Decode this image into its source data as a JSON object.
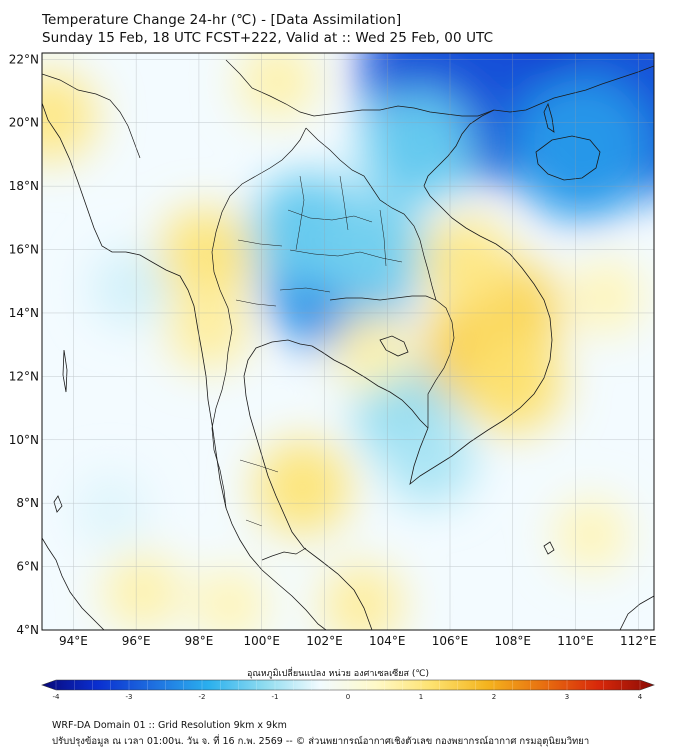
{
  "title": {
    "line1": "Temperature Change 24-hr (℃) - [Data Assimilation]",
    "line2": "Sunday 15 Feb, 18 UTC FCST+222, Valid at :: Wed 25 Feb, 00 UTC"
  },
  "map": {
    "lat_labels": [
      "22°N",
      "20°N",
      "18°N",
      "16°N",
      "14°N",
      "12°N",
      "10°N",
      "8°N",
      "6°N",
      "4°N"
    ],
    "lon_labels": [
      "94°E",
      "96°E",
      "98°E",
      "100°E",
      "102°E",
      "104°E",
      "106°E",
      "108°E",
      "110°E",
      "112°E"
    ],
    "extent": {
      "lon_min": 93.0,
      "lon_max": 112.5,
      "lat_min": 4.0,
      "lat_max": 22.2
    },
    "gridlines": true,
    "anomalies": [
      {
        "lon": 110.0,
        "lat": 21.2,
        "value": -3.6
      },
      {
        "lon": 107.5,
        "lat": 21.3,
        "value": -3.3
      },
      {
        "lon": 106.0,
        "lat": 21.6,
        "value": -2.9
      },
      {
        "lon": 112.0,
        "lat": 20.5,
        "value": -2.9
      },
      {
        "lon": 110.2,
        "lat": 19.2,
        "value": -2.1
      },
      {
        "lon": 105.0,
        "lat": 19.3,
        "value": -1.4
      },
      {
        "lon": 102.4,
        "lat": 15.1,
        "value": -2.2
      },
      {
        "lon": 101.5,
        "lat": 16.6,
        "value": -1.4
      },
      {
        "lon": 103.5,
        "lat": 16.0,
        "value": -1.3
      },
      {
        "lon": 104.6,
        "lat": 10.8,
        "value": -1.1
      },
      {
        "lon": 105.3,
        "lat": 9.4,
        "value": -0.9
      },
      {
        "lon": 107.0,
        "lat": 12.8,
        "value": 1.4
      },
      {
        "lon": 107.8,
        "lat": 14.0,
        "value": 1.3
      },
      {
        "lon": 106.5,
        "lat": 15.6,
        "value": 0.9
      },
      {
        "lon": 108.0,
        "lat": 11.8,
        "value": 1.1
      },
      {
        "lon": 98.2,
        "lat": 15.8,
        "value": 1.0
      },
      {
        "lon": 98.3,
        "lat": 13.5,
        "value": 0.7
      },
      {
        "lon": 93.3,
        "lat": 20.2,
        "value": 0.9
      },
      {
        "lon": 101.3,
        "lat": 8.5,
        "value": 1.0
      },
      {
        "lon": 103.5,
        "lat": 12.8,
        "value": 0.6
      },
      {
        "lon": 100.5,
        "lat": 21.3,
        "value": 0.6
      },
      {
        "lon": 103.2,
        "lat": 4.8,
        "value": 0.7
      },
      {
        "lon": 96.2,
        "lat": 5.2,
        "value": 0.6
      },
      {
        "lon": 95.8,
        "lat": 14.8,
        "value": -0.6
      },
      {
        "lon": 95.2,
        "lat": 7.8,
        "value": -0.5
      },
      {
        "lon": 111.0,
        "lat": 14.5,
        "value": 0.5
      },
      {
        "lon": 110.5,
        "lat": 7.0,
        "value": 0.5
      },
      {
        "lon": 99.0,
        "lat": 4.8,
        "value": 0.5
      }
    ]
  },
  "colorbar": {
    "label": "อุณหภูมิเปลี่ยนแปลง หน่วย องศาเซลเซียส (℃)",
    "ticks": [
      "-4",
      "-3",
      "-2",
      "-1",
      "0",
      "1",
      "2",
      "3",
      "4"
    ],
    "min": -4,
    "max": 4,
    "colors": [
      "#08087a",
      "#0a2fd0",
      "#1e6fe0",
      "#2bb0ee",
      "#8fdcf0",
      "#f2fbff",
      "#fff9c8",
      "#fde270",
      "#f4b41e",
      "#e87010",
      "#d8280a",
      "#8b0b05"
    ]
  },
  "footer": {
    "line1": "WRF-DA Domain 01 :: Grid Resolution 9km x 9km",
    "line2": "ปรับปรุงข้อมูล ณ เวลา 01:00น. วัน จ. ที่ 16 ก.พ. 2569 -- © ส่วนพยากรณ์อากาศเชิงตัวเลข กองพยากรณ์อากาศ กรมอุตุนิยมวิทยา"
  }
}
